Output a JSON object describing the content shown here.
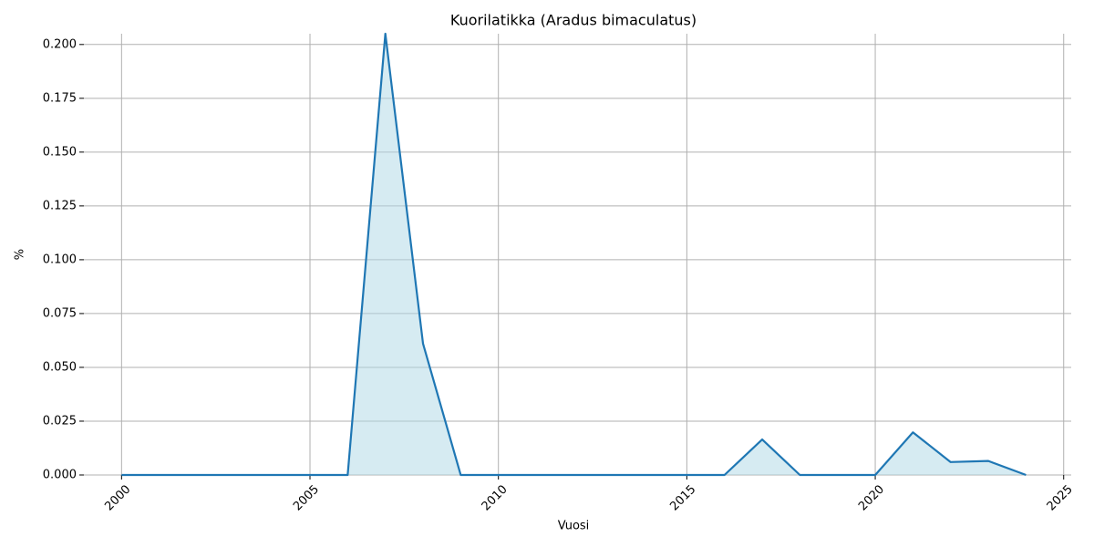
{
  "chart_data": {
    "type": "area-line",
    "title": "Kuorilatikka (Aradus bimaculatus)",
    "xlabel": "Vuosi",
    "ylabel": "%",
    "x": [
      2000,
      2001,
      2002,
      2003,
      2004,
      2005,
      2006,
      2007,
      2008,
      2009,
      2010,
      2011,
      2012,
      2013,
      2014,
      2015,
      2016,
      2017,
      2018,
      2019,
      2020,
      2021,
      2022,
      2023,
      2024
    ],
    "values": [
      0,
      0,
      0,
      0,
      0,
      0,
      0,
      0.205,
      0.061,
      0,
      0,
      0,
      0,
      0,
      0,
      0,
      0,
      0.0165,
      0,
      0,
      0,
      0.0198,
      0.006,
      0.0065,
      0
    ],
    "color": "#1f77b4",
    "fill_color": "#add8e6",
    "xlim": [
      1999,
      2025.2
    ],
    "xticks": [
      2000,
      2005,
      2010,
      2015,
      2020,
      2025
    ],
    "ylim": [
      0,
      0.205
    ],
    "yticks": [
      {
        "value": 0,
        "label": "0.000"
      },
      {
        "value": 0.025,
        "label": "0.025"
      },
      {
        "value": 0.05,
        "label": "0.050"
      },
      {
        "value": 0.075,
        "label": "0.075"
      },
      {
        "value": 0.1,
        "label": "0.100"
      },
      {
        "value": 0.125,
        "label": "0.125"
      },
      {
        "value": 0.15,
        "label": "0.150"
      },
      {
        "value": 0.175,
        "label": "0.175"
      },
      {
        "value": 0.2,
        "label": "0.200"
      }
    ],
    "grid": true
  }
}
